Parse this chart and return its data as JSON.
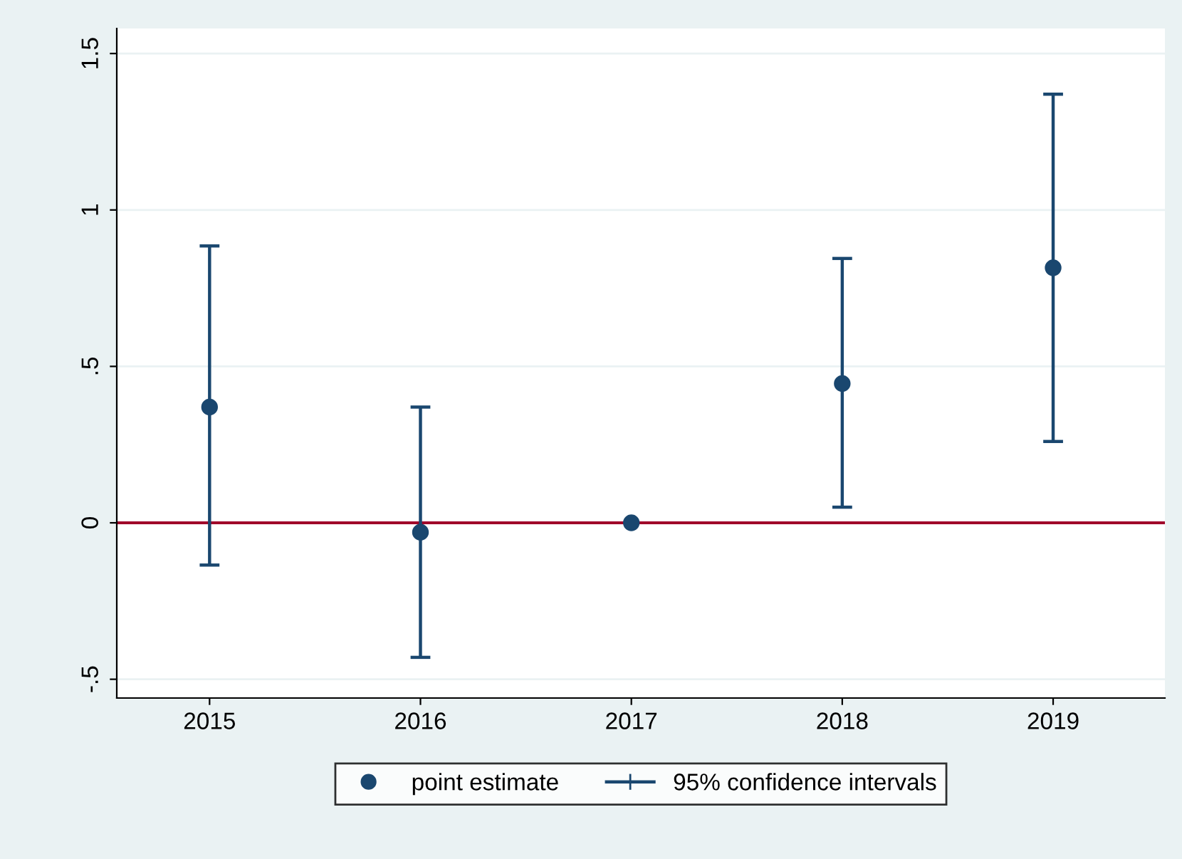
{
  "chart_data": {
    "type": "scatter",
    "x": [
      2015,
      2016,
      2017,
      2018,
      2019
    ],
    "series": [
      {
        "name": "point estimate",
        "type": "scatter",
        "marker": "circle",
        "color": "#1a476f",
        "values": [
          0.37,
          -0.03,
          0,
          0.445,
          0.815
        ],
        "errors": [
          [
            -0.135,
            0.885
          ],
          [
            -0.43,
            0.37
          ],
          null,
          [
            0.05,
            0.845
          ],
          [
            0.26,
            1.37
          ]
        ]
      }
    ],
    "annotations": [
      "95% confidence intervals"
    ],
    "xlim": [
      2014.56,
      2019.53
    ],
    "xticks": [
      2015,
      2016,
      2017,
      2018,
      2019
    ],
    "ylim": [
      -0.56,
      1.58
    ],
    "yticks": [
      {
        "value": -0.5,
        "label": "-.5"
      },
      0,
      {
        "value": 0.5,
        "label": ".5"
      },
      1,
      {
        "value": 1.5,
        "label": "1.5"
      }
    ],
    "ref_lines": [
      {
        "axis": "y",
        "value": 0,
        "color": "#a0002a",
        "line_style": "solid"
      }
    ],
    "grid": "y",
    "legend": "bottom"
  }
}
